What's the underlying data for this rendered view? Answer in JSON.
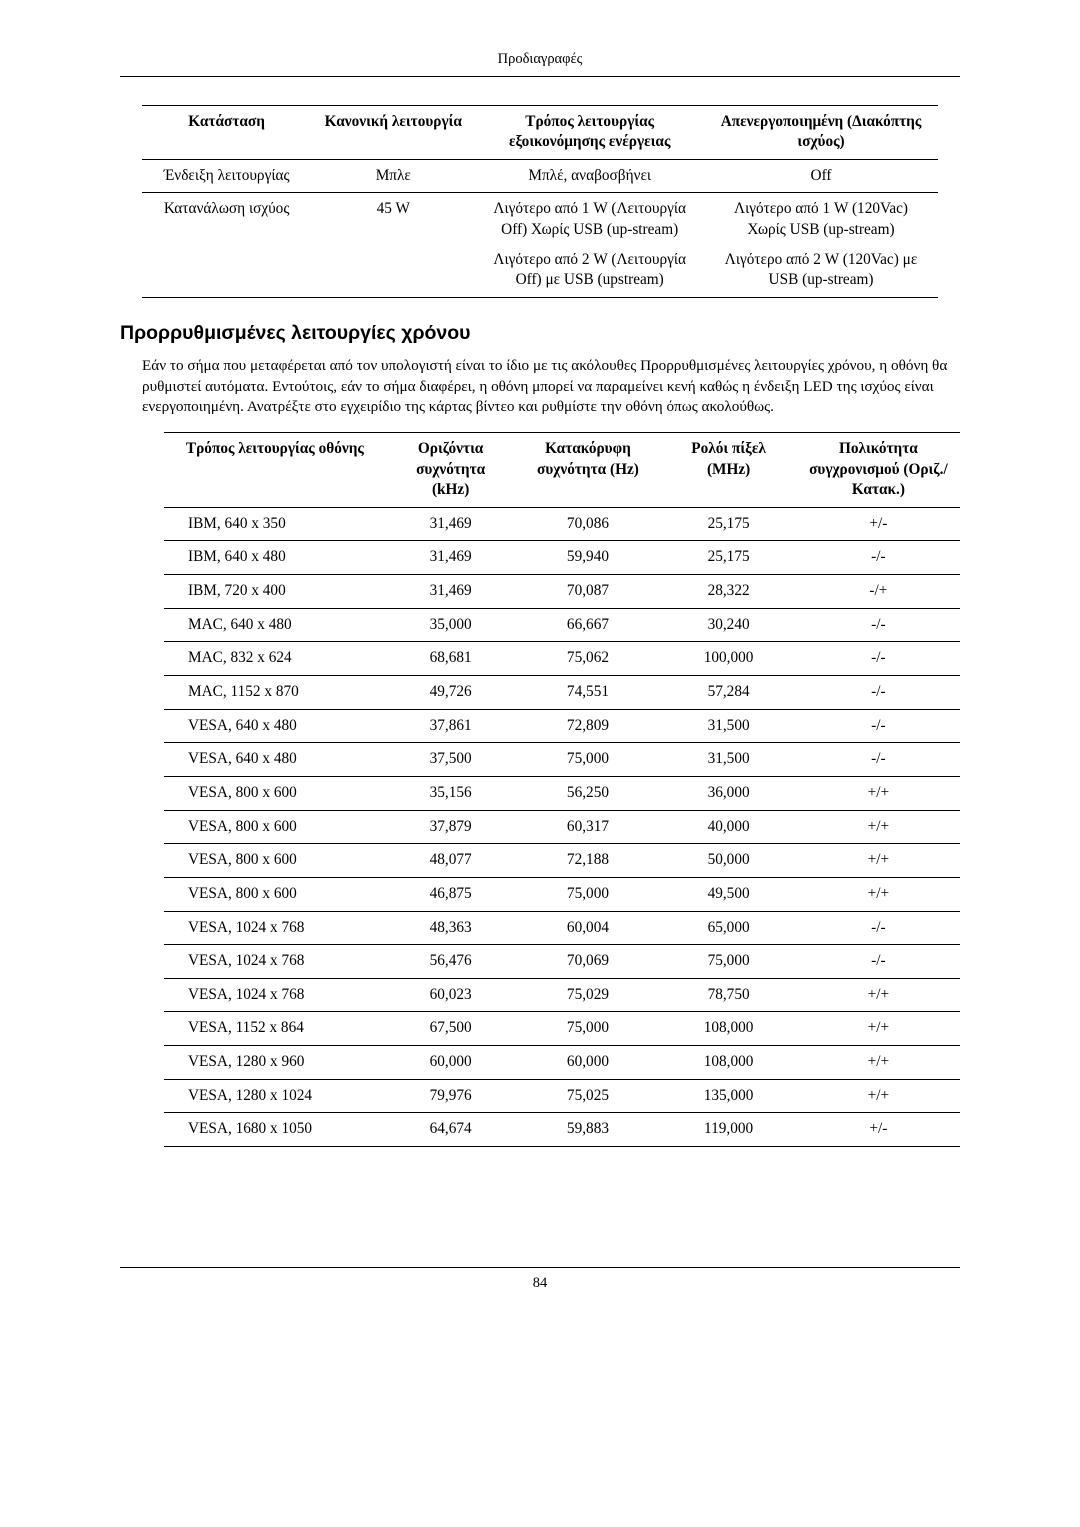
{
  "page": {
    "header_title": "Προδιαγραφές",
    "page_number": "84"
  },
  "table1": {
    "columns": [
      "Κατάσταση",
      "Κανονική λειτουργία",
      "Τρόπος λειτουργίας εξοικονόμησης ενέργειας",
      "Απενεργοποιημένη (Διακόπτης ισχύος)"
    ],
    "rows": [
      {
        "c1": "Ένδειξη λειτουργίας",
        "c2": "Μπλε",
        "c3": "Μπλέ, αναβοσβήνει",
        "c4": "Off"
      },
      {
        "c1": "Κατανάλωση ισχύος",
        "c2": "45 W",
        "c3a": "Λιγότερο από 1 W (Λειτουργία Off) Χωρίς USB (up-stream)",
        "c3b": "Λιγότερο από 2 W (Λειτουργία Off) με USB (upstream)",
        "c4a": "Λιγότερο από 1 W (120Vac) Χωρίς USB (up-stream)",
        "c4b": "Λιγότερο από 2 W (120Vac) με USB (up-stream)"
      }
    ]
  },
  "section": {
    "title": "Προρρυθμισμένες λειτουργίες χρόνου",
    "paragraph": "Εάν το σήμα που μεταφέρεται από τον υπολογιστή είναι το ίδιο με τις ακόλουθες Προρρυθμισμένες λειτουργίες χρόνου, η οθόνη θα ρυθμιστεί αυτόματα. Εντούτοις, εάν το σήμα διαφέρει, η οθόνη μπορεί να παραμείνει κενή καθώς η ένδειξη LED της ισχύος είναι ενεργοποιημένη. Ανατρέξτε στο εγχειρίδιο της κάρτας βίντεο και ρυθμίστε την οθόνη όπως ακολούθως."
  },
  "table2": {
    "columns": [
      "Τρόπος λειτουργίας οθόνης",
      "Οριζόντια συχνότητα (kHz)",
      "Κατακόρυφη συχνότητα (Hz)",
      "Ρολόι πίξελ (MHz)",
      "Πολικότητα συγχρονισμού (Οριζ./ Κατακ.)"
    ],
    "rows": [
      [
        "IBM, 640 x 350",
        "31,469",
        "70,086",
        "25,175",
        "+/-"
      ],
      [
        "IBM, 640 x 480",
        "31,469",
        "59,940",
        "25,175",
        "-/-"
      ],
      [
        "IBM, 720 x 400",
        "31,469",
        "70,087",
        "28,322",
        "-/+"
      ],
      [
        "MAC, 640 x 480",
        "35,000",
        "66,667",
        "30,240",
        "-/-"
      ],
      [
        "MAC, 832 x 624",
        "68,681",
        "75,062",
        "100,000",
        "-/-"
      ],
      [
        "MAC, 1152 x 870",
        "49,726",
        "74,551",
        "57,284",
        "-/-"
      ],
      [
        "VESA, 640 x 480",
        "37,861",
        "72,809",
        "31,500",
        "-/-"
      ],
      [
        "VESA, 640 x 480",
        "37,500",
        "75,000",
        "31,500",
        "-/-"
      ],
      [
        "VESA, 800 x 600",
        "35,156",
        "56,250",
        "36,000",
        "+/+"
      ],
      [
        "VESA, 800 x 600",
        "37,879",
        "60,317",
        "40,000",
        "+/+"
      ],
      [
        "VESA, 800 x 600",
        "48,077",
        "72,188",
        "50,000",
        "+/+"
      ],
      [
        "VESA, 800 x 600",
        "46,875",
        "75,000",
        "49,500",
        "+/+"
      ],
      [
        "VESA, 1024 x 768",
        "48,363",
        "60,004",
        "65,000",
        "-/-"
      ],
      [
        "VESA, 1024 x 768",
        "56,476",
        "70,069",
        "75,000",
        "-/-"
      ],
      [
        "VESA, 1024 x 768",
        "60,023",
        "75,029",
        "78,750",
        "+/+"
      ],
      [
        "VESA, 1152 x 864",
        "67,500",
        "75,000",
        "108,000",
        "+/+"
      ],
      [
        "VESA, 1280 x 960",
        "60,000",
        "60,000",
        "108,000",
        "+/+"
      ],
      [
        "VESA, 1280 x 1024",
        "79,976",
        "75,025",
        "135,000",
        "+/+"
      ],
      [
        "VESA, 1680 x 1050",
        "64,674",
        "59,883",
        "119,000",
        "+/-"
      ]
    ]
  }
}
